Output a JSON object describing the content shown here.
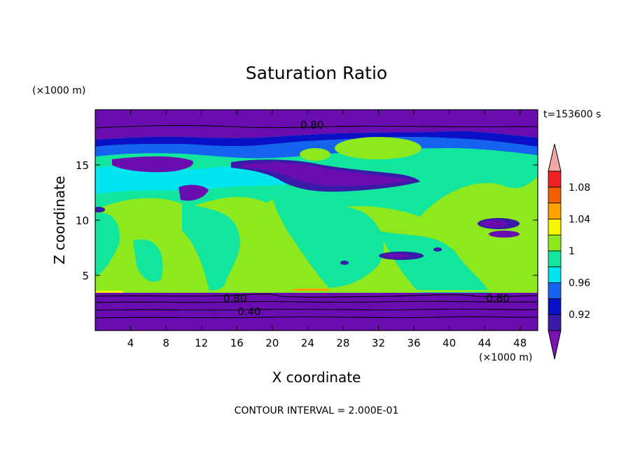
{
  "chart_data": {
    "type": "heatmap",
    "title": "Saturation Ratio",
    "xlabel": "X coordinate",
    "ylabel": "Z coordinate",
    "x_unit": "(×1000 m)",
    "y_unit": "(×1000 m)",
    "time_label": "t=153600 s",
    "footer": "CONTOUR INTERVAL = 2.000E-01",
    "xlim": [
      0,
      50
    ],
    "ylim": [
      0,
      20
    ],
    "x_ticks": [
      4,
      8,
      12,
      16,
      20,
      24,
      28,
      32,
      36,
      40,
      44,
      48
    ],
    "y_ticks": [
      5,
      10,
      15
    ],
    "colorbar": {
      "levels": [
        0.9,
        0.92,
        0.94,
        0.96,
        0.98,
        1.0,
        1.02,
        1.04,
        1.06,
        1.08,
        1.1
      ],
      "tick_labels": [
        "0.92",
        "0.96",
        "1",
        "1.04",
        "1.08"
      ],
      "tick_values": [
        0.92,
        0.96,
        1.0,
        1.04,
        1.08
      ],
      "colors": [
        "#6a0db0",
        "#3a1aa8",
        "#0a10c8",
        "#1464f0",
        "#00e6f0",
        "#12e69c",
        "#8ee81e",
        "#f6f600",
        "#ffa200",
        "#f26000",
        "#f22020"
      ],
      "under_color": "#7a12b4",
      "over_color": "#f4a8a4"
    },
    "contour_labels": [
      {
        "text": "0.80",
        "x": 24.5,
        "y": 18.6
      },
      {
        "text": "0.80",
        "x": 15.8,
        "y": 2.9
      },
      {
        "text": "0.40",
        "x": 17.4,
        "y": 1.7
      },
      {
        "text": "0.80",
        "x": 45.5,
        "y": 2.9
      }
    ]
  }
}
